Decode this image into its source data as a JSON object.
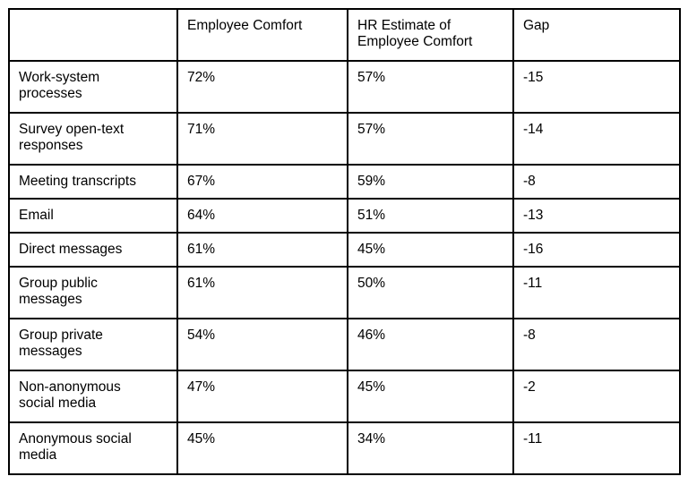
{
  "chart_data": {
    "type": "table",
    "columns": [
      "",
      "Employee Comfort",
      "HR Estimate of Employee Comfort",
      "Gap"
    ],
    "rows": [
      [
        "Work-system processes",
        "72%",
        "57%",
        "-15"
      ],
      [
        "Survey open-text responses",
        "71%",
        "57%",
        "-14"
      ],
      [
        "Meeting transcripts",
        "67%",
        "59%",
        "-8"
      ],
      [
        "Email",
        "64%",
        "51%",
        "-13"
      ],
      [
        "Direct messages",
        "61%",
        "45%",
        "-16"
      ],
      [
        "Group public messages",
        "61%",
        "50%",
        "-11"
      ],
      [
        "Group private messages",
        "54%",
        "46%",
        "-8"
      ],
      [
        "Non-anonymous social media",
        "47%",
        "45%",
        "-2"
      ],
      [
        "Anonymous social media",
        "45%",
        "34%",
        "-11"
      ]
    ],
    "layout": {
      "border_color": "#000000",
      "background_color": "#ffffff",
      "text_color": "#000000",
      "grid": "all-borders"
    }
  }
}
